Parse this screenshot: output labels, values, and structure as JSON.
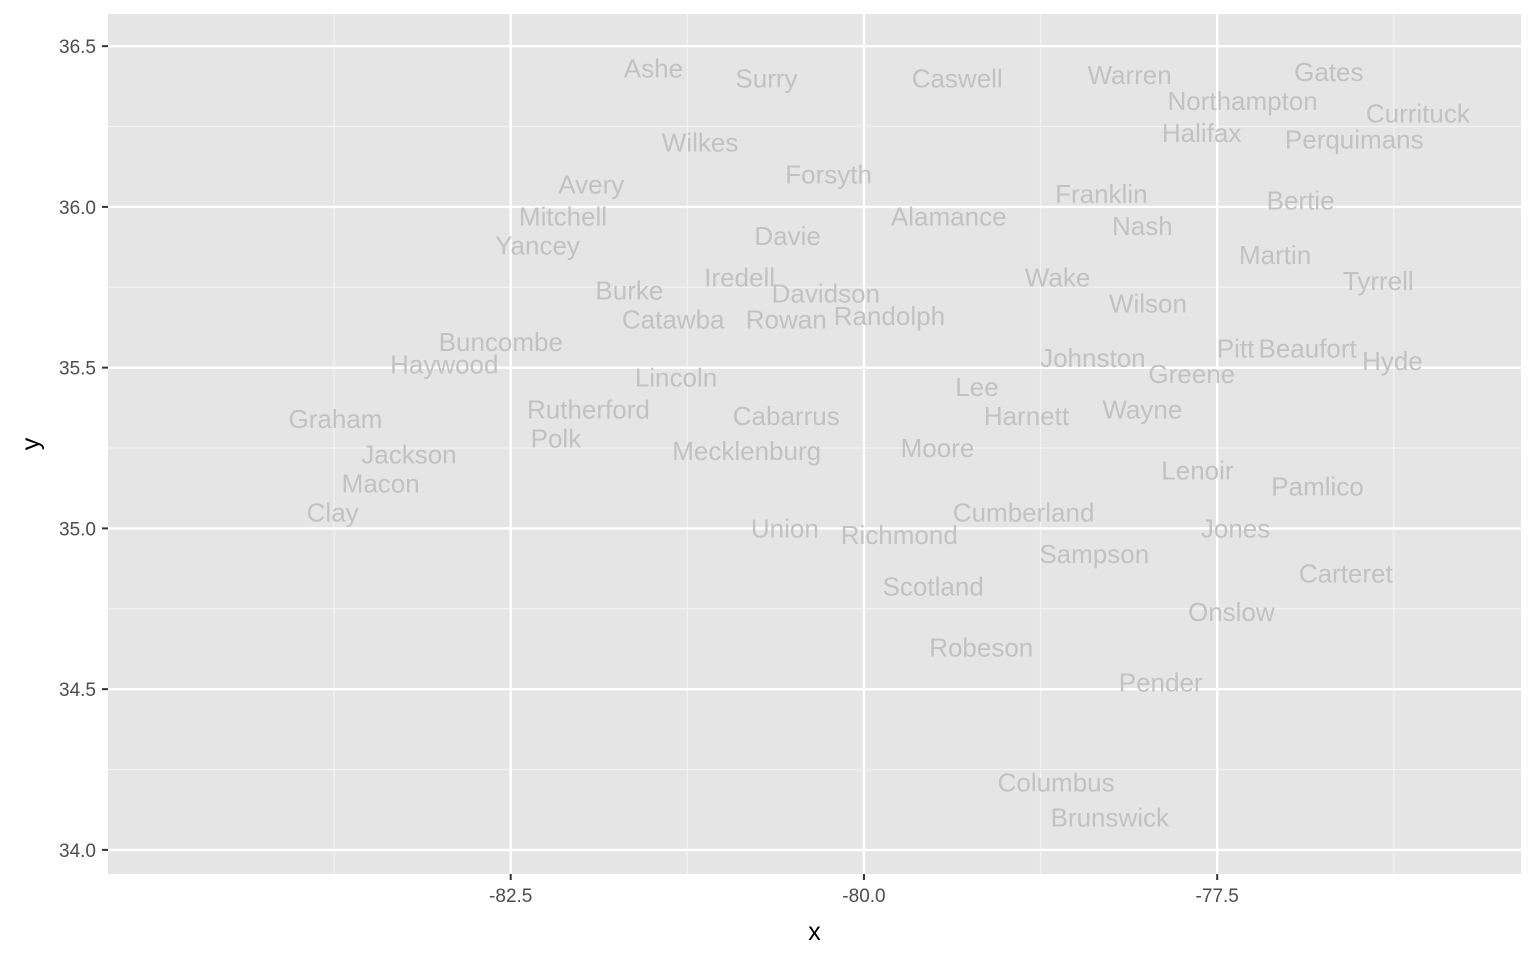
{
  "chart_data": {
    "type": "scatter",
    "mark": "text",
    "xlabel": "x",
    "ylabel": "y",
    "xlim": [
      -85.35,
      -75.35
    ],
    "ylim": [
      33.925,
      36.6
    ],
    "xticks": [
      -82.5,
      -80.0,
      -77.5
    ],
    "xtick_labels": [
      "-82.5",
      "-80.0",
      "-77.5"
    ],
    "yticks": [
      34.0,
      34.5,
      35.0,
      35.5,
      36.0,
      36.5
    ],
    "ytick_labels": [
      "34.0",
      "34.5",
      "35.0",
      "35.5",
      "36.0",
      "36.5"
    ],
    "grid": true,
    "legend": "none",
    "points": [
      {
        "label": "Ashe",
        "x": -81.49,
        "y": 36.43
      },
      {
        "label": "Surry",
        "x": -80.69,
        "y": 36.4
      },
      {
        "label": "Caswell",
        "x": -79.34,
        "y": 36.4
      },
      {
        "label": "Warren",
        "x": -78.12,
        "y": 36.41
      },
      {
        "label": "Gates",
        "x": -76.71,
        "y": 36.42
      },
      {
        "label": "Northampton",
        "x": -77.32,
        "y": 36.33
      },
      {
        "label": "Currituck",
        "x": -76.08,
        "y": 36.29
      },
      {
        "label": "Halifax",
        "x": -77.61,
        "y": 36.23
      },
      {
        "label": "Perquimans",
        "x": -76.53,
        "y": 36.21
      },
      {
        "label": "Wilkes",
        "x": -81.16,
        "y": 36.2
      },
      {
        "label": "Forsyth",
        "x": -80.25,
        "y": 36.1
      },
      {
        "label": "Avery",
        "x": -81.93,
        "y": 36.07
      },
      {
        "label": "Franklin",
        "x": -78.32,
        "y": 36.04
      },
      {
        "label": "Bertie",
        "x": -76.91,
        "y": 36.02
      },
      {
        "label": "Mitchell",
        "x": -82.13,
        "y": 35.97
      },
      {
        "label": "Alamance",
        "x": -79.4,
        "y": 35.97
      },
      {
        "label": "Nash",
        "x": -78.03,
        "y": 35.94
      },
      {
        "label": "Davie",
        "x": -80.54,
        "y": 35.91
      },
      {
        "label": "Yancey",
        "x": -82.31,
        "y": 35.88
      },
      {
        "label": "Martin",
        "x": -77.09,
        "y": 35.85
      },
      {
        "label": "Iredell",
        "x": -80.88,
        "y": 35.78
      },
      {
        "label": "Wake",
        "x": -78.63,
        "y": 35.78
      },
      {
        "label": "Tyrrell",
        "x": -76.36,
        "y": 35.77
      },
      {
        "label": "Burke",
        "x": -81.66,
        "y": 35.74
      },
      {
        "label": "Davidson",
        "x": -80.27,
        "y": 35.73
      },
      {
        "label": "Wilson",
        "x": -77.99,
        "y": 35.7
      },
      {
        "label": "Randolph",
        "x": -79.82,
        "y": 35.66
      },
      {
        "label": "Catawba",
        "x": -81.35,
        "y": 35.65
      },
      {
        "label": "Rowan",
        "x": -80.55,
        "y": 35.65
      },
      {
        "label": "Buncombe",
        "x": -82.57,
        "y": 35.58
      },
      {
        "label": "Haywood",
        "x": -82.97,
        "y": 35.51
      },
      {
        "label": "Johnston",
        "x": -78.38,
        "y": 35.53
      },
      {
        "label": "Pitt",
        "x": -77.37,
        "y": 35.56
      },
      {
        "label": "Beaufort",
        "x": -76.86,
        "y": 35.56
      },
      {
        "label": "Hyde",
        "x": -76.26,
        "y": 35.52
      },
      {
        "label": "Greene",
        "x": -77.68,
        "y": 35.48
      },
      {
        "label": "Lincoln",
        "x": -81.33,
        "y": 35.47
      },
      {
        "label": "Lee",
        "x": -79.2,
        "y": 35.44
      },
      {
        "label": "Rutherford",
        "x": -81.95,
        "y": 35.37
      },
      {
        "label": "Wayne",
        "x": -78.03,
        "y": 35.37
      },
      {
        "label": "Cabarrus",
        "x": -80.55,
        "y": 35.35
      },
      {
        "label": "Harnett",
        "x": -78.85,
        "y": 35.35
      },
      {
        "label": "Graham",
        "x": -83.74,
        "y": 35.34
      },
      {
        "label": "Polk",
        "x": -82.18,
        "y": 35.28
      },
      {
        "label": "Mecklenburg",
        "x": -80.83,
        "y": 35.24
      },
      {
        "label": "Moore",
        "x": -79.48,
        "y": 35.25
      },
      {
        "label": "Jackson",
        "x": -83.22,
        "y": 35.23
      },
      {
        "label": "Lenoir",
        "x": -77.64,
        "y": 35.18
      },
      {
        "label": "Macon",
        "x": -83.42,
        "y": 35.14
      },
      {
        "label": "Pamlico",
        "x": -76.79,
        "y": 35.13
      },
      {
        "label": "Clay",
        "x": -83.76,
        "y": 35.05
      },
      {
        "label": "Cumberland",
        "x": -78.87,
        "y": 35.05
      },
      {
        "label": "Union",
        "x": -80.56,
        "y": 35.0
      },
      {
        "label": "Jones",
        "x": -77.37,
        "y": 35.0
      },
      {
        "label": "Richmond",
        "x": -79.75,
        "y": 34.98
      },
      {
        "label": "Sampson",
        "x": -78.37,
        "y": 34.92
      },
      {
        "label": "Carteret",
        "x": -76.59,
        "y": 34.86
      },
      {
        "label": "Scotland",
        "x": -79.51,
        "y": 34.82
      },
      {
        "label": "Onslow",
        "x": -77.4,
        "y": 34.74
      },
      {
        "label": "Robeson",
        "x": -79.17,
        "y": 34.63
      },
      {
        "label": "Pender",
        "x": -77.9,
        "y": 34.52
      },
      {
        "label": "Columbus",
        "x": -78.64,
        "y": 34.21
      },
      {
        "label": "Brunswick",
        "x": -78.26,
        "y": 34.1
      }
    ]
  }
}
